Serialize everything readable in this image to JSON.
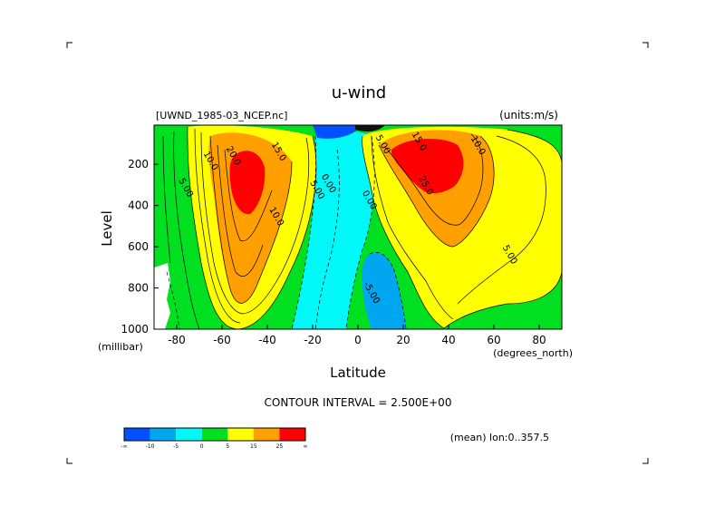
{
  "chart_data": {
    "type": "heatmap",
    "title": "u-wind",
    "file_label": "[UWND_1985-03_NCEP.nc]",
    "units_label": "(units:m/s)",
    "xlabel": "Latitude",
    "x_unit": "(degrees_north)",
    "ylabel": "Level",
    "y_unit": "(millibar)",
    "xlim": [
      -90,
      90
    ],
    "ylim": [
      1000,
      10
    ],
    "x_ticks": [
      -80,
      -60,
      -40,
      -20,
      0,
      20,
      40,
      60,
      80
    ],
    "y_ticks": [
      200,
      400,
      600,
      800,
      1000
    ],
    "contour_interval_text": "CONTOUR INTERVAL = 2.500E+00",
    "mean_text": "(mean) lon:0..357.5",
    "contour_labels": [
      {
        "text": "20.0",
        "lat": -56,
        "level": 165
      },
      {
        "text": "15.0",
        "lat": -36,
        "level": 145
      },
      {
        "text": "10.0",
        "lat": -66,
        "level": 190
      },
      {
        "text": "5.00",
        "lat": -77,
        "level": 320
      },
      {
        "text": "10.0",
        "lat": -37,
        "level": 460
      },
      {
        "text": "5.00",
        "lat": -19,
        "level": 330
      },
      {
        "text": "0.00",
        "lat": -14,
        "level": 300
      },
      {
        "text": "0.00",
        "lat": 4,
        "level": 380
      },
      {
        "text": "5.00",
        "lat": 10,
        "level": 110
      },
      {
        "text": "15.0",
        "lat": 26,
        "level": 95
      },
      {
        "text": "10.0",
        "lat": 52,
        "level": 115
      },
      {
        "text": "25.0",
        "lat": 29,
        "level": 310
      },
      {
        "text": "5.00",
        "lat": 66,
        "level": 645
      },
      {
        "text": "-5.00",
        "lat": 5,
        "level": 830
      }
    ],
    "colorbar": {
      "colors": [
        "#0050ff",
        "#00a6f0",
        "#00f8f8",
        "#00e020",
        "#ffff00",
        "#ffa000",
        "#ff0000"
      ],
      "labels": [
        "-∞",
        "-10",
        "-5",
        "0",
        "5",
        "15",
        "25",
        "∞"
      ]
    }
  }
}
